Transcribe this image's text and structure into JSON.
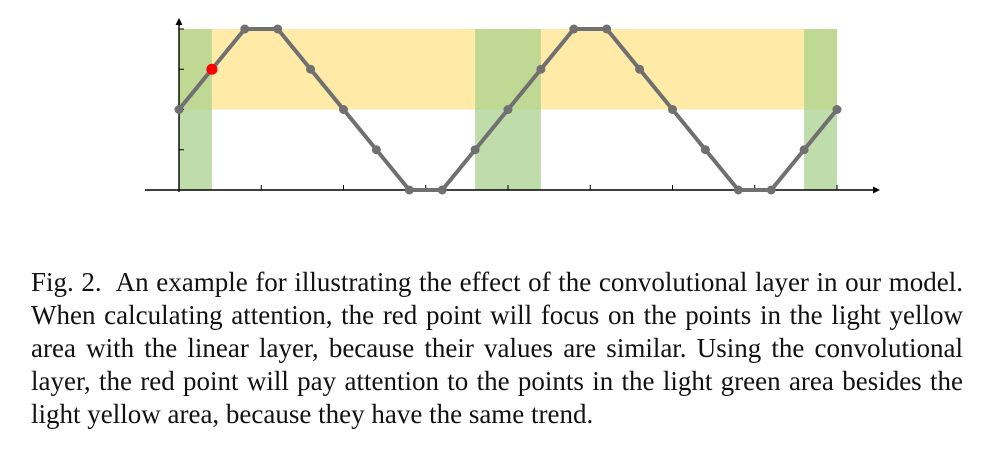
{
  "figure": {
    "caption_label": "Fig. 2.",
    "caption_text": "An example for illustrating the effect of the convolutional layer in our model. When calculating attention, the red point will focus on the points in the light yellow area with the linear layer, because their values are similar. Using the convolutional layer, the red point will pay attention to the points in the light green area besides the light yellow area, because they have the same trend."
  },
  "chart_data": {
    "type": "line",
    "title": "",
    "xlabel": "",
    "ylabel": "",
    "x": [
      0,
      1,
      2,
      3,
      4,
      5,
      6,
      7,
      8,
      9,
      10,
      11,
      12,
      13,
      14,
      15,
      16,
      17,
      18,
      19,
      20
    ],
    "series": [
      {
        "values": [
          2.0,
          2.5,
          3.0,
          3.0,
          2.5,
          2.0,
          1.5,
          1.0,
          1.0,
          1.5,
          2.0,
          2.5,
          3.0,
          3.0,
          2.5,
          2.0,
          1.5,
          1.0,
          1.0,
          1.5,
          2.0
        ]
      }
    ],
    "highlight_point": {
      "x": 1,
      "y": 2.5
    },
    "yellow_band": {
      "x_range": [
        0,
        20
      ],
      "y_range": [
        2.0,
        3.0
      ]
    },
    "green_bands": [
      [
        0,
        1
      ],
      [
        9,
        11
      ],
      [
        19,
        20
      ]
    ],
    "xlim": [
      -1,
      21.5
    ],
    "ylim": [
      1.0,
      3.5
    ],
    "grid": false,
    "colors": {
      "line": "#707070",
      "point": "#707070",
      "highlight": "#ff0000",
      "yellow": "#ffe699",
      "green": "#a9d18e"
    }
  }
}
